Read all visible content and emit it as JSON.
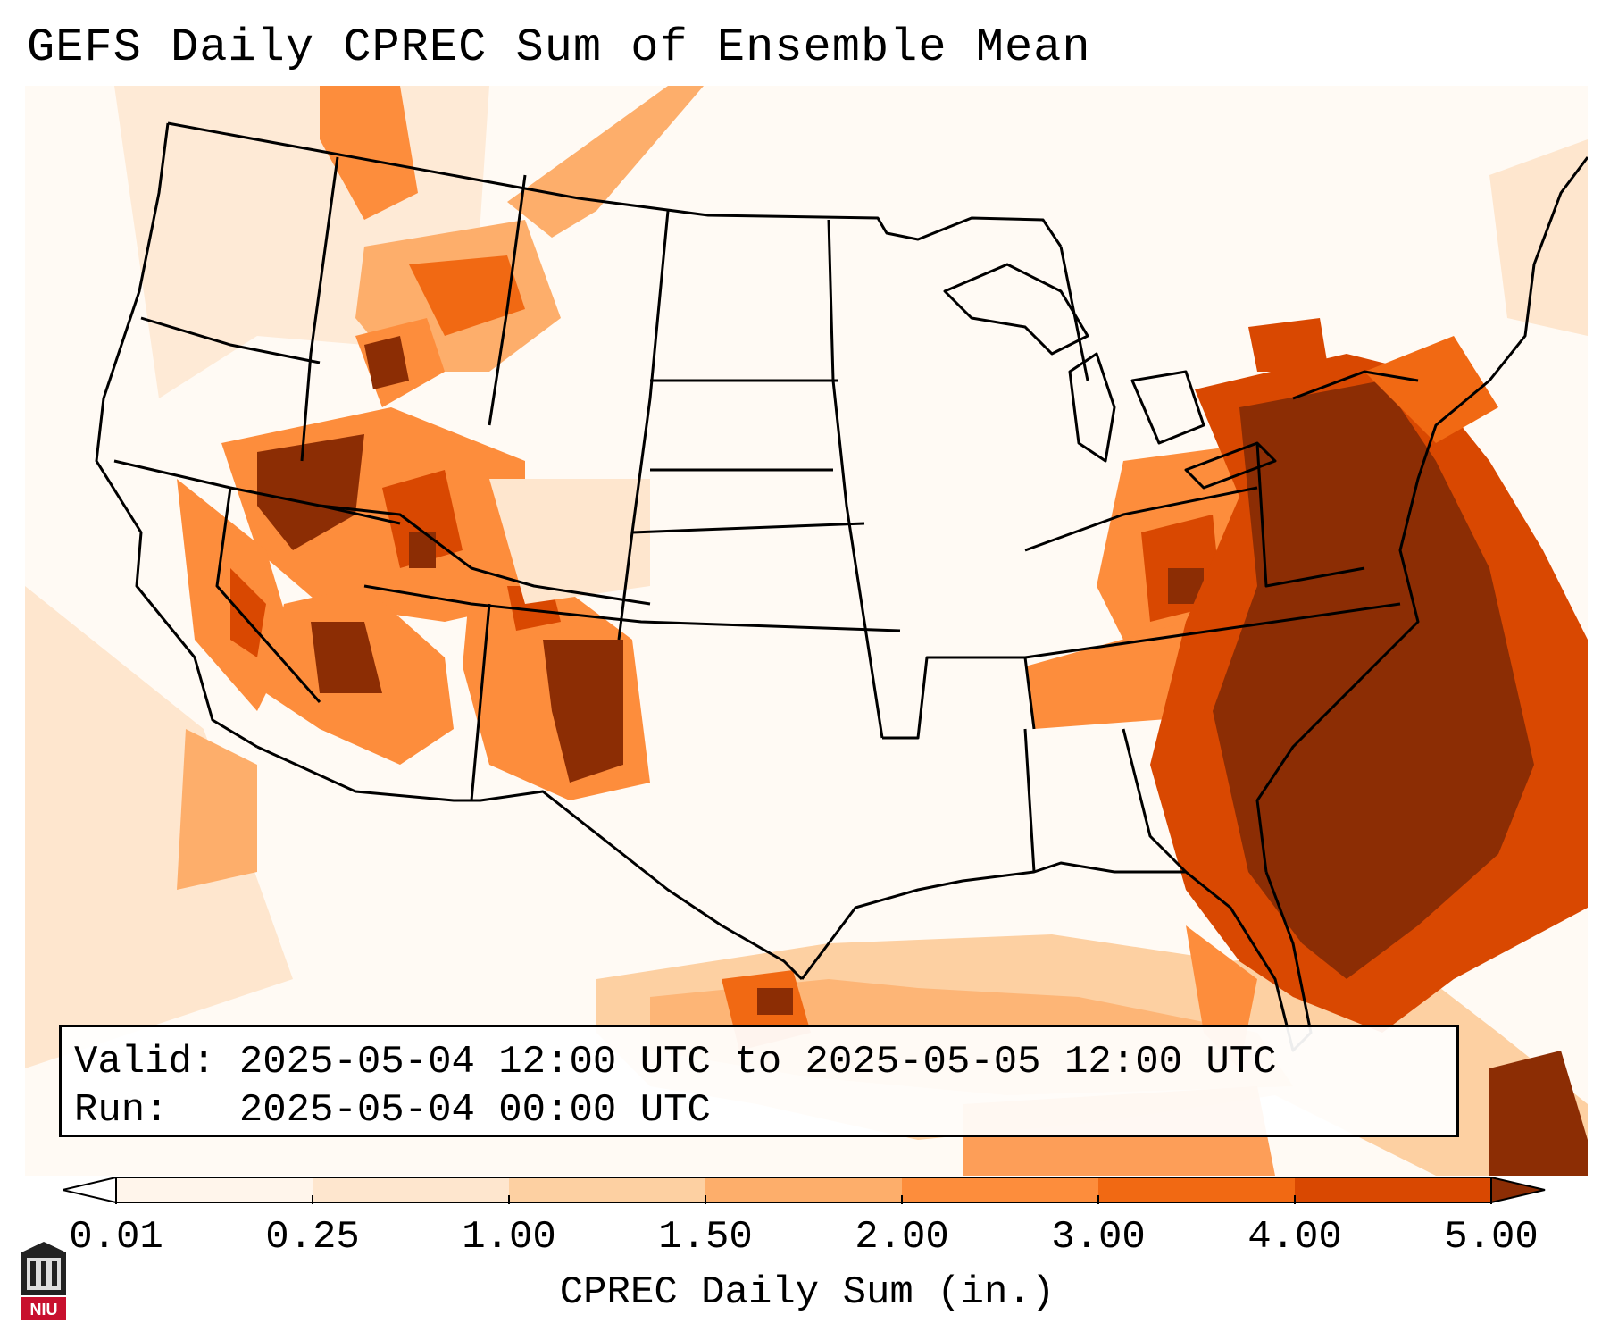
{
  "title": "GEFS Daily CPREC Sum of Ensemble Mean",
  "info": {
    "valid_line": "Valid: 2025-05-04 12:00 UTC to 2025-05-05 12:00 UTC",
    "run_line": "Run:   2025-05-04 00:00 UTC"
  },
  "colorbar": {
    "label": "CPREC Daily Sum (in.)",
    "ticks": [
      "0.01",
      "0.25",
      "1.00",
      "1.50",
      "2.00",
      "3.00",
      "4.00",
      "5.00"
    ],
    "colors": [
      "#fff5eb",
      "#fee6ce",
      "#fdd0a2",
      "#fdae6b",
      "#fd8d3c",
      "#f16913",
      "#d94801",
      "#8c2d04"
    ]
  },
  "logo": {
    "text": "NIU",
    "color": "#c8102e"
  }
}
